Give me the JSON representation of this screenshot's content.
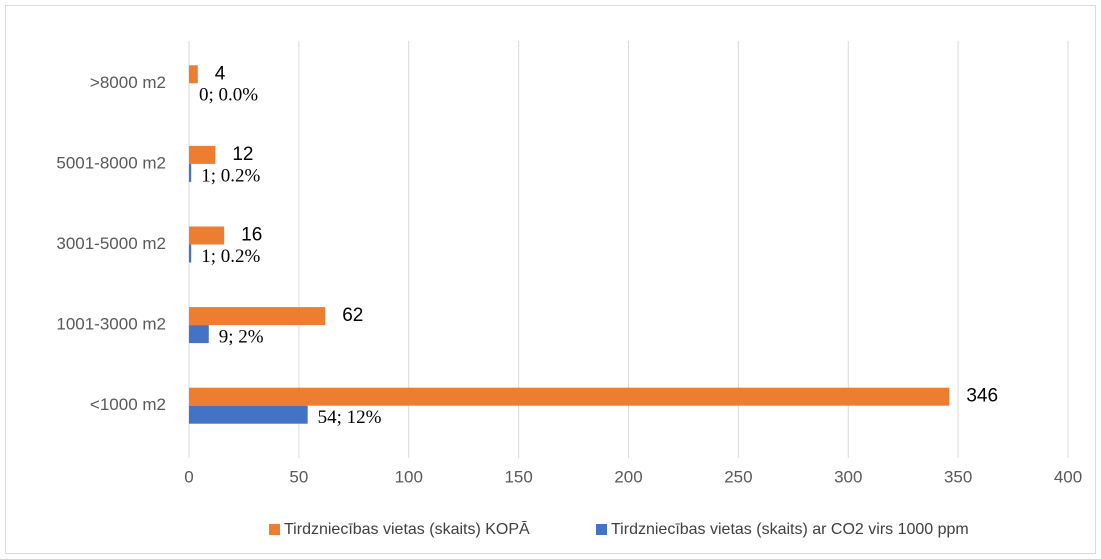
{
  "chart_data": {
    "type": "bar",
    "orientation": "horizontal",
    "categories": [
      "<1000 m2",
      "1001-3000 m2",
      "3001-5000 m2",
      "5001-8000 m2",
      ">8000 m2"
    ],
    "series": [
      {
        "name": "Tirdzniecības vietas (skaits) KOPĀ",
        "color": "#ed7d31",
        "values": [
          346,
          62,
          16,
          12,
          4
        ]
      },
      {
        "name": "Tirdzniecības vietas (skaits) ar CO2 virs 1000 ppm",
        "color": "#4472c4",
        "values": [
          54,
          9,
          1,
          1,
          0
        ],
        "value_labels": [
          "54; 12%",
          "9; 2%",
          "1; 0.2%",
          "1; 0.2%",
          "0; 0.0%"
        ]
      }
    ],
    "xlim": [
      0,
      400
    ],
    "xticks": [
      0,
      50,
      100,
      150,
      200,
      250,
      300,
      350,
      400
    ],
    "grid": true,
    "legend": "bottom"
  }
}
